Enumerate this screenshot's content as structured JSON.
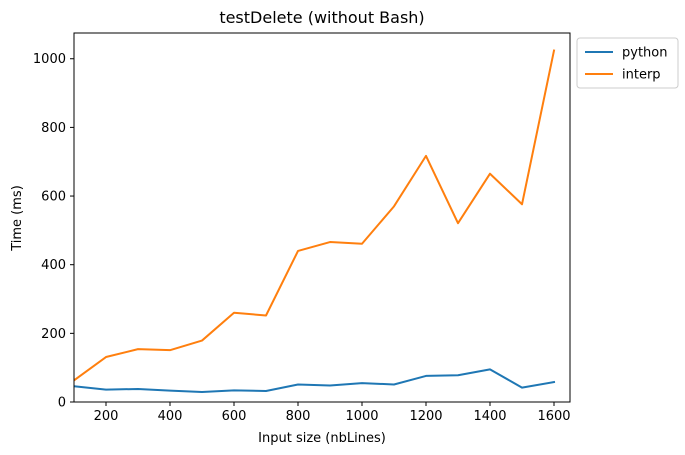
{
  "chart_data": {
    "type": "line",
    "title": "testDelete (without Bash)",
    "xlabel": "Input size (nbLines)",
    "ylabel": "Time (ms)",
    "x": [
      100,
      200,
      300,
      400,
      500,
      600,
      700,
      800,
      900,
      1000,
      1100,
      1200,
      1300,
      1400,
      1500,
      1600
    ],
    "xlim": [
      100,
      1650
    ],
    "ylim": [
      0,
      1075
    ],
    "xticks": [
      200,
      400,
      600,
      800,
      1000,
      1200,
      1400,
      1600
    ],
    "yticks": [
      0,
      200,
      400,
      600,
      800,
      1000
    ],
    "grid": false,
    "legend_position": "outside top-right",
    "series": [
      {
        "name": "python",
        "color": "#1f77b4",
        "values": [
          46,
          36,
          38,
          33,
          29,
          34,
          32,
          51,
          48,
          55,
          51,
          76,
          78,
          95,
          42,
          58
        ]
      },
      {
        "name": "interp",
        "color": "#ff7f0e",
        "values": [
          63,
          131,
          154,
          151,
          179,
          260,
          252,
          440,
          466,
          461,
          570,
          717,
          521,
          665,
          576,
          1024
        ]
      }
    ]
  }
}
